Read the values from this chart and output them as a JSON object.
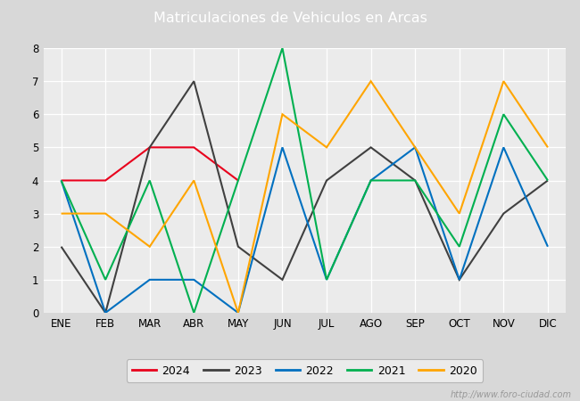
{
  "title": "Matriculaciones de Vehiculos en Arcas",
  "title_color": "#ffffff",
  "header_color": "#4472c4",
  "months": [
    "ENE",
    "FEB",
    "MAR",
    "ABR",
    "MAY",
    "JUN",
    "JUL",
    "AGO",
    "SEP",
    "OCT",
    "NOV",
    "DIC"
  ],
  "series": {
    "2024": {
      "values": [
        4,
        4,
        5,
        5,
        4,
        null,
        null,
        null,
        null,
        null,
        null,
        null
      ],
      "color": "#e8001c",
      "linewidth": 1.5
    },
    "2023": {
      "values": [
        2,
        0,
        5,
        7,
        2,
        1,
        4,
        5,
        4,
        1,
        3,
        4
      ],
      "color": "#404040",
      "linewidth": 1.5
    },
    "2022": {
      "values": [
        4,
        0,
        1,
        1,
        0,
        5,
        1,
        4,
        5,
        1,
        5,
        2
      ],
      "color": "#0070c0",
      "linewidth": 1.5
    },
    "2021": {
      "values": [
        4,
        1,
        4,
        0,
        4,
        8,
        1,
        4,
        4,
        2,
        6,
        4
      ],
      "color": "#00b050",
      "linewidth": 1.5
    },
    "2020": {
      "values": [
        3,
        3,
        2,
        4,
        0,
        6,
        5,
        7,
        5,
        3,
        7,
        5
      ],
      "color": "#ffa500",
      "linewidth": 1.5
    }
  },
  "ylim": [
    0,
    8.0
  ],
  "yticks": [
    0.0,
    1.0,
    2.0,
    3.0,
    4.0,
    5.0,
    6.0,
    7.0,
    8.0
  ],
  "plot_bg_color": "#ebebeb",
  "grid_color": "#ffffff",
  "fig_bg_color": "#d8d8d8",
  "watermark": "http://www.foro-ciudad.com",
  "legend_order": [
    "2024",
    "2023",
    "2022",
    "2021",
    "2020"
  ]
}
